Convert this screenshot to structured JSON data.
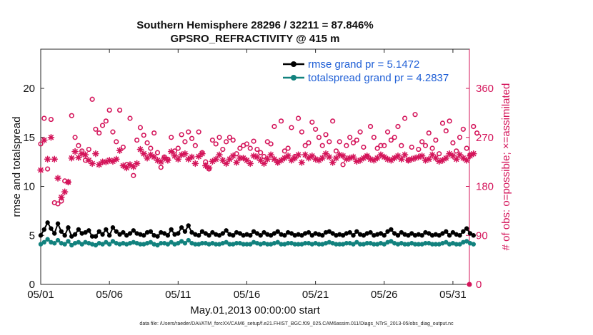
{
  "title": {
    "line1": "Southern Hemisphere 28296 / 32211 = 87.846%",
    "line2": "GPSRO_REFRACTIVITY @ 415 m"
  },
  "footer_text": "data file: /Users/raeder/DAI/ATM_forcXX/CAM6_setup/f.e21.FHIST_BGC.f09_025.CAM6assim.011/Diags_NTrS_2013-05/obs_diag_output.nc",
  "colors": {
    "rmse": "#000000",
    "totalspread": "#12827e",
    "obs": "#d4145a",
    "legend_text": "#1f5fd6"
  },
  "chart_data": {
    "type": "line",
    "xlabel": "May.01,2013 00:00:00 start",
    "ylabel_left": "rmse and totalspread",
    "ylabel_right": "# of obs: o=possible; ×=assimilated",
    "x_range_days": [
      0,
      31.2
    ],
    "ylim_left": [
      0,
      24
    ],
    "ylim_right": [
      0,
      432
    ],
    "x_ticks": [
      {
        "day": 0,
        "label": "05/01"
      },
      {
        "day": 5,
        "label": "05/06"
      },
      {
        "day": 10,
        "label": "05/11"
      },
      {
        "day": 15,
        "label": "05/16"
      },
      {
        "day": 20,
        "label": "05/21"
      },
      {
        "day": 25,
        "label": "05/26"
      },
      {
        "day": 30,
        "label": "05/31"
      }
    ],
    "y_ticks_left": [
      0,
      5,
      10,
      15,
      20
    ],
    "y_ticks_right": [
      0,
      90,
      180,
      270,
      360
    ],
    "grid": false,
    "legend_position": "top-right",
    "sample_interval_days": 0.25,
    "series": [
      {
        "name": "rmse grand pr = 5.1472",
        "axis": "left",
        "marker": "filled-circle",
        "values": [
          5.0,
          5.6,
          6.3,
          5.7,
          5.2,
          6.2,
          5.4,
          5.0,
          5.8,
          4.9,
          5.1,
          5.6,
          5.2,
          5.3,
          5.5,
          4.9,
          4.9,
          5.4,
          5.1,
          5.6,
          5.0,
          5.8,
          5.4,
          5.1,
          5.3,
          5.0,
          5.2,
          5.5,
          5.2,
          5.1,
          5.0,
          5.3,
          5.4,
          5.0,
          4.9,
          5.3,
          5.2,
          5.0,
          5.6,
          5.1,
          5.2,
          5.8,
          5.4,
          6.0,
          5.3,
          5.1,
          5.0,
          5.4,
          5.2,
          5.0,
          5.3,
          5.1,
          5.0,
          5.2,
          5.5,
          5.1,
          5.0,
          5.3,
          5.2,
          5.0,
          5.1,
          5.0,
          5.4,
          5.2,
          5.0,
          5.3,
          5.1,
          5.0,
          5.2,
          5.4,
          5.1,
          5.0,
          5.3,
          5.2,
          5.0,
          5.1,
          5.0,
          5.2,
          5.3,
          5.0,
          5.2,
          5.1,
          5.0,
          5.3,
          5.4,
          5.2,
          5.0,
          5.1,
          5.0,
          5.2,
          5.3,
          5.0,
          5.4,
          5.1,
          5.0,
          5.2,
          5.3,
          5.0,
          5.1,
          5.2,
          5.0,
          5.4,
          5.6,
          5.2,
          5.0,
          5.3,
          5.1,
          5.0,
          5.2,
          5.0,
          5.1,
          5.0,
          5.3,
          5.2,
          5.0,
          5.1,
          5.0,
          5.2,
          5.4,
          5.0,
          5.3,
          5.1,
          5.0,
          5.4,
          5.7,
          5.2,
          5.0
        ]
      },
      {
        "name": "totalspread grand pr = 4.2837",
        "axis": "left",
        "marker": "filled-circle",
        "values": [
          4.1,
          4.3,
          4.6,
          4.3,
          4.2,
          4.5,
          4.2,
          4.1,
          4.4,
          4.0,
          4.2,
          4.3,
          4.1,
          4.3,
          4.2,
          4.1,
          4.0,
          4.2,
          4.1,
          4.3,
          4.1,
          4.4,
          4.2,
          4.1,
          4.2,
          4.1,
          4.2,
          4.3,
          4.2,
          4.1,
          4.1,
          4.2,
          4.3,
          4.1,
          4.0,
          4.2,
          4.2,
          4.1,
          4.3,
          4.1,
          4.2,
          4.4,
          4.2,
          4.5,
          4.2,
          4.1,
          4.1,
          4.2,
          4.2,
          4.1,
          4.2,
          4.1,
          4.1,
          4.2,
          4.3,
          4.1,
          4.1,
          4.2,
          4.2,
          4.1,
          4.1,
          4.1,
          4.3,
          4.2,
          4.1,
          4.2,
          4.1,
          4.1,
          4.2,
          4.3,
          4.1,
          4.1,
          4.2,
          4.2,
          4.1,
          4.1,
          4.1,
          4.2,
          4.2,
          4.1,
          4.2,
          4.1,
          4.1,
          4.2,
          4.3,
          4.2,
          4.1,
          4.1,
          4.1,
          4.2,
          4.2,
          4.1,
          4.3,
          4.1,
          4.1,
          4.2,
          4.2,
          4.1,
          4.1,
          4.2,
          4.1,
          4.3,
          4.4,
          4.2,
          4.1,
          4.2,
          4.1,
          4.1,
          4.2,
          4.1,
          4.1,
          4.1,
          4.2,
          4.2,
          4.1,
          4.1,
          4.1,
          4.2,
          4.3,
          4.1,
          4.2,
          4.1,
          4.1,
          4.3,
          4.4,
          4.2,
          4.1
        ]
      },
      {
        "name": "possible",
        "axis": "right",
        "marker": "open-circle",
        "values": [
          258,
          305,
          212,
          303,
          150,
          148,
          153,
          190,
          188,
          310,
          270,
          255,
          245,
          228,
          248,
          340,
          285,
          278,
          292,
          300,
          320,
          280,
          262,
          320,
          252,
          220,
          305,
          200,
          265,
          288,
          274,
          260,
          250,
          278,
          242,
          215,
          234,
          230,
          270,
          245,
          250,
          275,
          262,
          280,
          268,
          255,
          280,
          242,
          225,
          212,
          265,
          258,
          270,
          248,
          262,
          270,
          265,
          240,
          250,
          255,
          258,
          250,
          263,
          248,
          242,
          235,
          262,
          258,
          290,
          225,
          300,
          245,
          250,
          288,
          235,
          305,
          280,
          255,
          260,
          298,
          285,
          270,
          255,
          275,
          262,
          300,
          245,
          262,
          220,
          255,
          270,
          260,
          265,
          280,
          252,
          235,
          290,
          270,
          250,
          255,
          255,
          280,
          265,
          270,
          290,
          255,
          305,
          228,
          252,
          312,
          248,
          262,
          255,
          278,
          250,
          265,
          240,
          296,
          282,
          300,
          260,
          245,
          270,
          285,
          250,
          238,
          290,
          278
        ]
      },
      {
        "name": "assimilated",
        "axis": "right",
        "marker": "star",
        "values": [
          210,
          265,
          230,
          270,
          230,
          195,
          160,
          170,
          188,
          232,
          244,
          233,
          240,
          238,
          228,
          222,
          240,
          220,
          225,
          225,
          228,
          226,
          230,
          246,
          218,
          214,
          220,
          216,
          222,
          248,
          240,
          232,
          238,
          234,
          228,
          225,
          232,
          228,
          244,
          236,
          230,
          238,
          240,
          230,
          234,
          222,
          235,
          240,
          218,
          214,
          226,
          230,
          238,
          228,
          222,
          230,
          236,
          224,
          232,
          232,
          228,
          222,
          236,
          234,
          228,
          222,
          230,
          238,
          230,
          224,
          228,
          232,
          236,
          228,
          232,
          238,
          224,
          238,
          232,
          236,
          230,
          228,
          232,
          240,
          234,
          224,
          232,
          238,
          236,
          230,
          232,
          234,
          226,
          228,
          232,
          236,
          230,
          228,
          232,
          238,
          234,
          230,
          228,
          232,
          236,
          230,
          238,
          228,
          230,
          232,
          234,
          236,
          228,
          230,
          238,
          232,
          226,
          228,
          232,
          240,
          236,
          230,
          238,
          232,
          228,
          236,
          240
        ]
      }
    ]
  }
}
